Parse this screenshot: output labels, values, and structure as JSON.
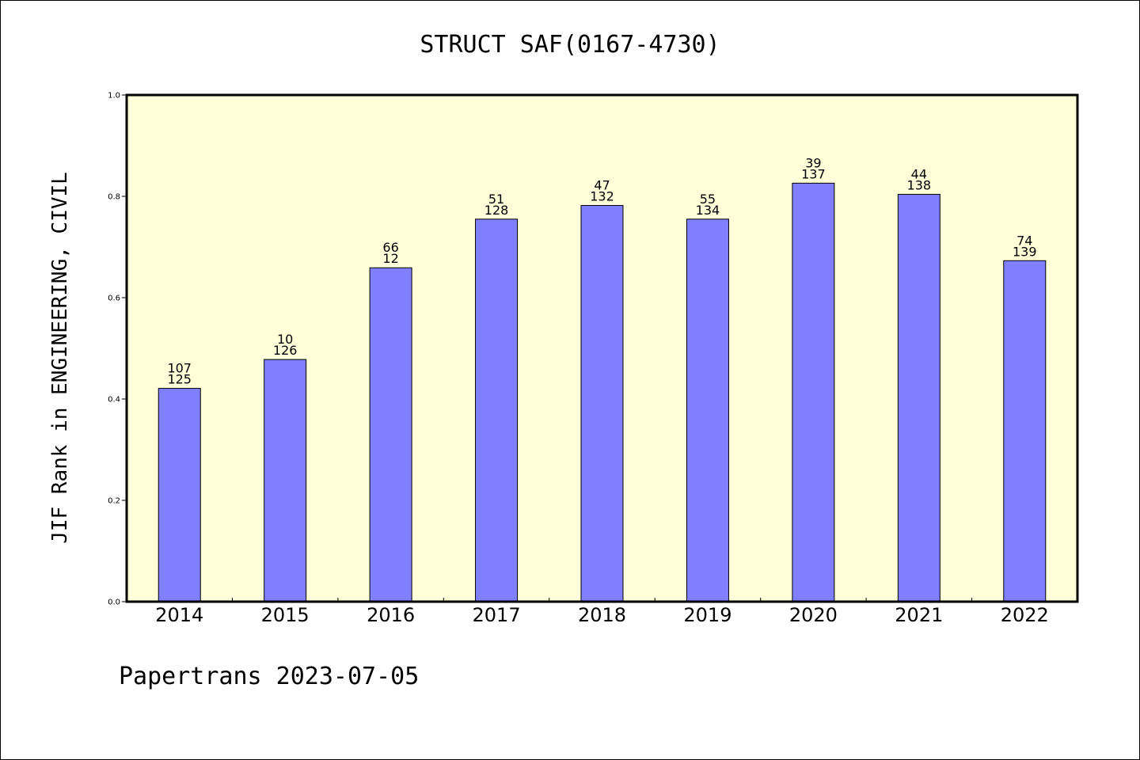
{
  "chart_data": {
    "type": "bar",
    "title": "STRUCT SAF(0167-4730)",
    "ylabel": "JIF Rank in ENGINEERING, CIVIL",
    "xlabel": "",
    "ylim": [
      0,
      1.0
    ],
    "yticks": [
      "0.0",
      "0.2",
      "0.4",
      "0.6",
      "0.8",
      "1.0"
    ],
    "categories": [
      "2014",
      "2015",
      "2016",
      "2017",
      "2018",
      "2019",
      "2020",
      "2021",
      "2022"
    ],
    "values": [
      0.421,
      0.478,
      0.659,
      0.755,
      0.782,
      0.755,
      0.826,
      0.804,
      0.673
    ],
    "annotations": [
      {
        "top": "107",
        "bottom": "125"
      },
      {
        "top": "10",
        "bottom": "126"
      },
      {
        "top": "66",
        "bottom": "12"
      },
      {
        "top": "51",
        "bottom": "128"
      },
      {
        "top": "47",
        "bottom": "132"
      },
      {
        "top": "55",
        "bottom": "134"
      },
      {
        "top": "39",
        "bottom": "137"
      },
      {
        "top": "44",
        "bottom": "138"
      },
      {
        "top": "74",
        "bottom": "139"
      }
    ],
    "grid": false,
    "colors": {
      "bar": "#8080ff",
      "plot_background": "#ffffd9",
      "axis": "#000000"
    }
  },
  "footer": "Papertrans 2023-07-05"
}
